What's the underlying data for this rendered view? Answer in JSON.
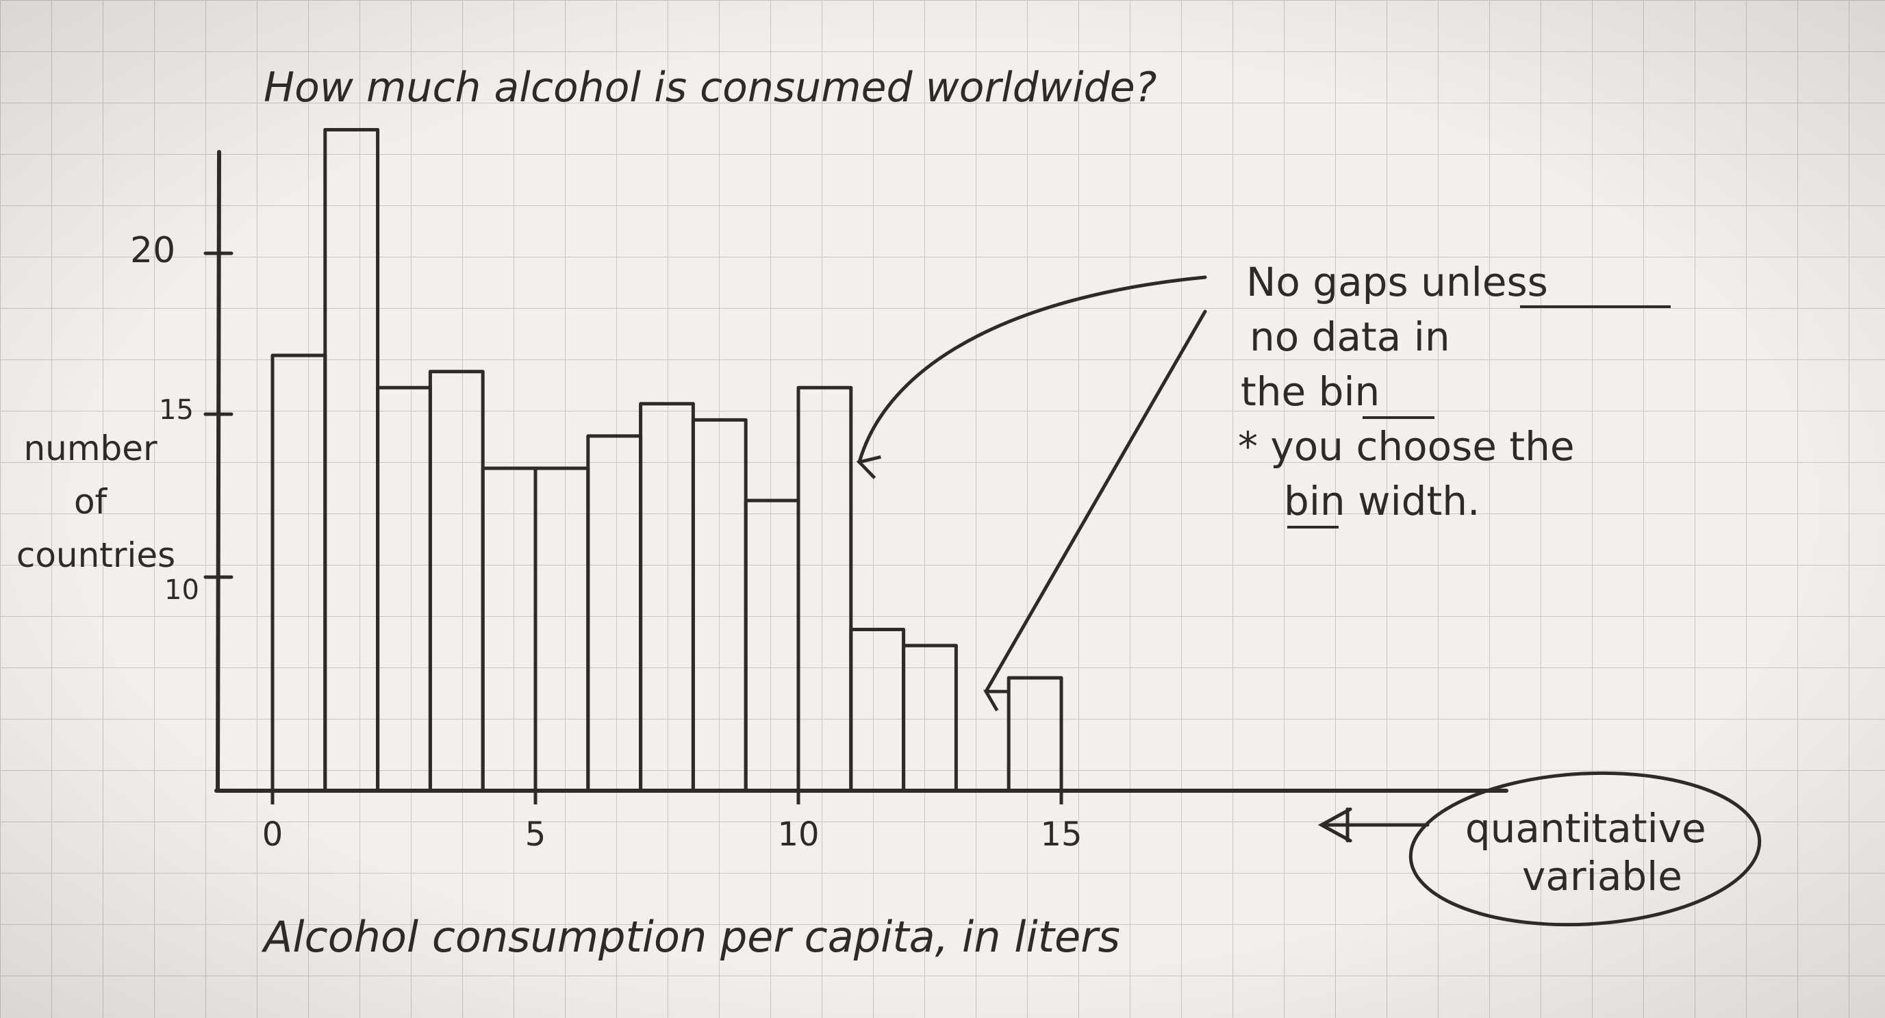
{
  "chart_data": {
    "type": "bar",
    "title": "How much alcohol is consumed worldwide?",
    "xlabel": "Alcohol consumption per capita, in liters",
    "ylabel": "number of countries",
    "x_tick_labels": [
      "0",
      "5",
      "10",
      "15"
    ],
    "y_tick_labels": [
      "10",
      "15",
      "20"
    ],
    "bins": [
      {
        "start": 0,
        "end": 1,
        "count": 13.5
      },
      {
        "start": 1,
        "end": 2,
        "count": 20.5
      },
      {
        "start": 2,
        "end": 3,
        "count": 12.5
      },
      {
        "start": 3,
        "end": 4,
        "count": 13
      },
      {
        "start": 4,
        "end": 5,
        "count": 10
      },
      {
        "start": 5,
        "end": 6,
        "count": 10
      },
      {
        "start": 6,
        "end": 7,
        "count": 11
      },
      {
        "start": 7,
        "end": 8,
        "count": 12
      },
      {
        "start": 8,
        "end": 9,
        "count": 11.5
      },
      {
        "start": 9,
        "end": 10,
        "count": 9
      },
      {
        "start": 10,
        "end": 11,
        "count": 12.5
      },
      {
        "start": 11,
        "end": 12,
        "count": 5
      },
      {
        "start": 12,
        "end": 13,
        "count": 4.5
      },
      {
        "start": 14,
        "end": 15,
        "count": 3.5
      }
    ],
    "xlim": [
      0,
      15
    ],
    "grid": true
  },
  "annotations": {
    "note_lines": [
      "No gaps unless",
      "no data in",
      "the bin",
      "* you choose the",
      "bin width."
    ],
    "variable_label_lines": [
      "quantitative",
      "variable"
    ]
  },
  "colors": {
    "paper": "#f2f0ec",
    "grid": "#c9c7c4",
    "ink": "#2e2a27"
  }
}
